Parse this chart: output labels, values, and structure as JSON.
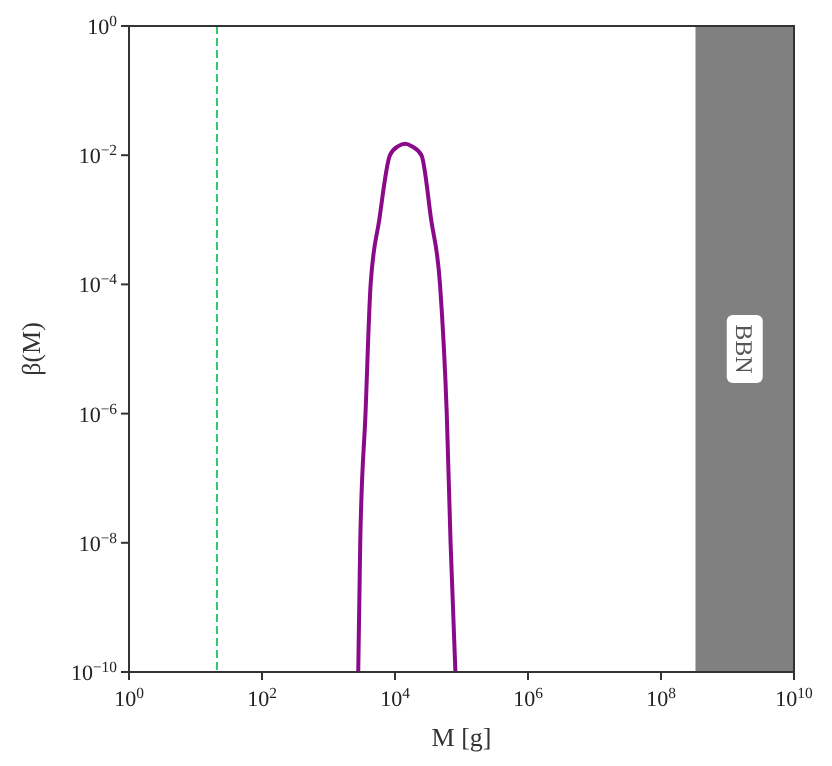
{
  "chart_data": {
    "type": "line",
    "xlabel": "M [g]",
    "ylabel": "β(M)",
    "log": "xy",
    "grid": false,
    "xlim": [
      1,
      10000000000
    ],
    "ylim": [
      1e-10,
      1
    ],
    "xticks": [
      {
        "value": 1,
        "label": "10$^{0}$"
      },
      {
        "value": 100,
        "label": "10$^{2}$"
      },
      {
        "value": 10000,
        "label": "10$^{4}$"
      },
      {
        "value": 1000000,
        "label": "10$^{6}$"
      },
      {
        "value": 100000000,
        "label": "10$^{8}$"
      },
      {
        "value": 10000000000,
        "label": "10$^{10}$"
      }
    ],
    "yticks": [
      {
        "value": 1e-10,
        "label": "10$^{−10}$"
      },
      {
        "value": 1e-08,
        "label": "10$^{−8}$"
      },
      {
        "value": 1e-06,
        "label": "10$^{−6}$"
      },
      {
        "value": 0.0001,
        "label": "10$^{−4}$"
      },
      {
        "value": 0.01,
        "label": "10$^{−2}$"
      },
      {
        "value": 1,
        "label": "10$^{0}$"
      }
    ],
    "series": [
      {
        "color": "#8b0a8b",
        "x": [
          2800,
          3000,
          3600,
          4300,
          5800,
          8400,
          11200,
          14300,
          17800,
          25000,
          35000,
          47500,
          60000,
          68500,
          81000
        ],
        "values": [
          1e-10,
          1e-08,
          1e-06,
          0.0001,
          0.001,
          0.01,
          0.0138,
          0.015,
          0.0138,
          0.01,
          0.001,
          0.0001,
          1e-06,
          1e-08,
          1e-10
        ]
      }
    ],
    "ref_lines": [
      {
        "axis": "x",
        "value": 21,
        "color": "#2fc66a",
        "line_style": "dashed"
      }
    ],
    "bands": [
      {
        "axis": "x",
        "from": 330000000,
        "to": 10000000000,
        "label": "BBN",
        "color": "#808080"
      }
    ]
  }
}
